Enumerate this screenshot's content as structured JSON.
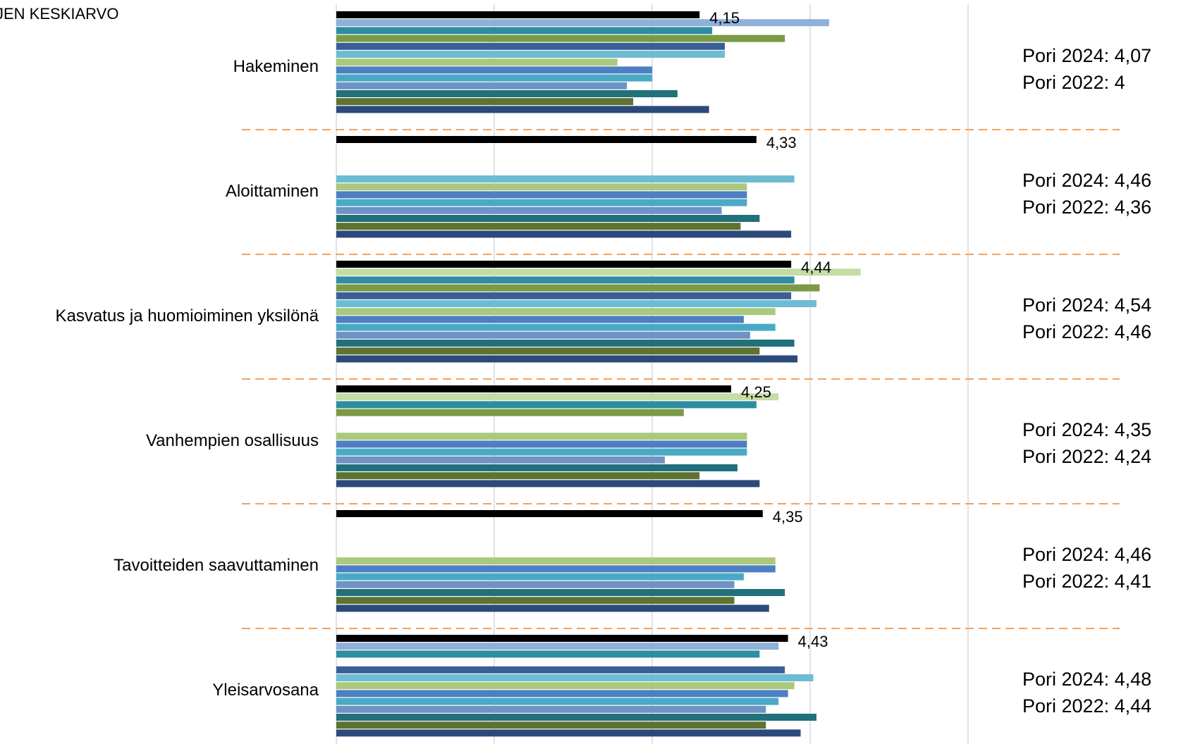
{
  "chart_data": {
    "type": "bar",
    "orientation": "horizontal",
    "title": "",
    "corner_label": "JEN KESKIARVO",
    "xlabel": "",
    "ylabel": "",
    "xlim": [
      3.0,
      5.0
    ],
    "grid": true,
    "colors": {
      "total": "#000000",
      "divider": "#F4A15D",
      "grid": "#D9D9D9",
      "palette": [
        "#8FB0D9",
        "#2E8DA0",
        "#7A9A45",
        "#3A5E98",
        "#6CBCD3",
        "#AAC97C",
        "#4D7FC2",
        "#4AAAC6",
        "#6E93C4",
        "#21707C",
        "#5E7330",
        "#2C4A79"
      ]
    },
    "categories": [
      {
        "label": "Hakeminen",
        "total_label": "4,15",
        "total": 4.15,
        "bars": [
          4.56,
          4.19,
          4.42,
          4.23,
          4.23,
          3.89,
          4.0,
          4.0,
          3.92,
          4.08,
          3.94,
          4.18
        ],
        "notes": [
          "Pori 2024: 4,07",
          "Pori 2022: 4"
        ]
      },
      {
        "label": "Aloittaminen",
        "total_label": "4,33",
        "total": 4.33,
        "bars": [
          null,
          null,
          null,
          null,
          4.45,
          4.3,
          4.3,
          4.3,
          4.22,
          4.34,
          4.28,
          4.44
        ],
        "notes": [
          "Pori 2024: 4,46",
          "Pori 2022: 4,36"
        ]
      },
      {
        "label": "Kasvatus ja huomioiminen yksilönä",
        "total_label": "4,44",
        "total": 4.44,
        "bars": [
          4.66,
          4.45,
          4.53,
          4.44,
          4.52,
          4.39,
          4.29,
          4.39,
          4.31,
          4.45,
          4.34,
          4.46
        ],
        "first_bar_color": "#C5DDA5",
        "notes": [
          "Pori 2024: 4,54",
          "Pori 2022: 4,46"
        ]
      },
      {
        "label": "Vanhempien osallisuus",
        "total_label": "4,25",
        "total": 4.25,
        "bars": [
          4.4,
          4.33,
          4.1,
          null,
          null,
          4.3,
          4.3,
          4.3,
          4.04,
          4.27,
          4.15,
          4.34
        ],
        "first_bar_color": "#C5DDA5",
        "notes": [
          "Pori 2024: 4,35",
          "Pori 2022: 4,24"
        ]
      },
      {
        "label": "Tavoitteiden saavuttaminen",
        "total_label": "4,35",
        "total": 4.35,
        "bars": [
          null,
          null,
          null,
          null,
          null,
          4.39,
          4.39,
          4.29,
          4.26,
          4.42,
          4.26,
          4.37
        ],
        "notes": [
          "Pori 2024: 4,46",
          "Pori 2022: 4,41"
        ]
      },
      {
        "label": "Yleisarvosana",
        "total_label": "4,43",
        "total": 4.43,
        "bars": [
          4.4,
          4.34,
          null,
          4.42,
          4.51,
          4.45,
          4.43,
          4.4,
          4.36,
          4.52,
          4.36,
          4.47
        ],
        "notes": [
          "Pori 2024: 4,48",
          "Pori 2022: 4,44"
        ]
      }
    ]
  }
}
